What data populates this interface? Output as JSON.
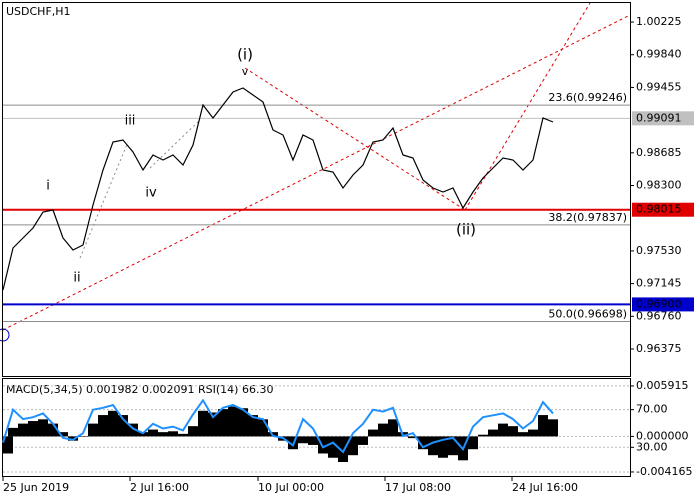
{
  "chart_data": [
    {
      "type": "line",
      "title": "USDCHF,H1",
      "x": [
        0,
        1,
        2,
        3,
        4,
        5,
        6,
        7,
        8,
        9,
        10,
        11,
        12,
        13,
        14,
        15,
        16,
        17,
        18,
        19,
        20,
        21,
        22,
        23,
        24,
        25,
        26,
        27,
        28,
        29,
        30,
        31,
        32,
        33,
        34,
        35,
        36,
        37,
        38,
        39,
        40,
        41,
        42,
        43,
        44,
        45,
        46,
        47,
        48,
        49,
        50,
        51,
        52,
        53,
        54,
        55
      ],
      "values": [
        0.9707,
        0.97564,
        0.97682,
        0.978,
        0.97988,
        0.98012,
        0.97682,
        0.97541,
        0.976,
        0.98071,
        0.98483,
        0.98812,
        0.98836,
        0.98695,
        0.98483,
        0.98659,
        0.986,
        0.98659,
        0.98541,
        0.98777,
        0.99248,
        0.99095,
        0.99248,
        0.99401,
        0.99448,
        0.99366,
        0.99283,
        0.98954,
        0.98895,
        0.986,
        0.98895,
        0.98836,
        0.98483,
        0.98459,
        0.98271,
        0.98424,
        0.98541,
        0.98812,
        0.98836,
        0.98977,
        0.98659,
        0.98624,
        0.98365,
        0.98271,
        0.98224,
        0.98271,
        0.98035,
        0.98224,
        0.98388,
        0.98506,
        0.98624,
        0.986,
        0.98483,
        0.986,
        0.99095,
        0.99048
      ],
      "color": "#000000",
      "xlim": [
        0,
        62.7
      ],
      "ylim": [
        0.96057,
        1.00449
      ],
      "yticks": [
        1.00225,
        {
          "value": 0.9984,
          "label": "0.99840"
        },
        0.99455,
        0.98685,
        {
          "value": 0.983,
          "label": "0.98300"
        },
        {
          "value": 0.9753,
          "label": "0.97530"
        },
        0.97145,
        {
          "value": 0.9676,
          "label": "0.96760"
        },
        0.96375
      ],
      "price_lines": [
        {
          "value": 0.99091,
          "color": "#c0c0c0"
        },
        {
          "value": 0.98015,
          "color": "#e00000"
        },
        {
          "value": 0.969,
          "label": "0.96900",
          "color": "#0000cc"
        }
      ],
      "levels": [
        {
          "value": 0.99246,
          "label": "23.6(0.99246)"
        },
        {
          "value": 0.97837,
          "label": "38.2(0.97837)"
        },
        {
          "value": 0.96698,
          "label": "50.0(0.96698)"
        }
      ],
      "level_color": "#8c8c8c",
      "annotations": [
        {
          "text": "i",
          "color": "#555555"
        },
        {
          "text": "ii",
          "color": "#555555"
        },
        {
          "text": "iii",
          "color": "#555555"
        },
        {
          "text": "iv",
          "color": "#555555"
        },
        {
          "text": "v",
          "color": "#555555"
        },
        {
          "text": "(i)",
          "color": "#e00000"
        },
        {
          "text": "(ii)",
          "color": "#e00000"
        }
      ]
    },
    {
      "type": "bar",
      "title": "MACD(5,34,5) 0.001982 0.002091 RSI(14) 66.30",
      "x": [
        0,
        1,
        2,
        3,
        4,
        5,
        6,
        7,
        8,
        9,
        10,
        11,
        12,
        13,
        14,
        15,
        16,
        17,
        18,
        19,
        20,
        21,
        22,
        23,
        24,
        25,
        26,
        27,
        28,
        29,
        30,
        31,
        32,
        33,
        34,
        35,
        36,
        37,
        38,
        39,
        40,
        41,
        42,
        43,
        44,
        45,
        46,
        47,
        48,
        49,
        50,
        51,
        52,
        53,
        54,
        55
      ],
      "xlim": [
        0,
        62.7
      ],
      "xticks": [
        {
          "value": 0,
          "label": "25 Jun 2019"
        },
        {
          "value": 12.7,
          "label": "2 Jul 16:00"
        },
        {
          "value": 25.5,
          "label": "10 Jul 00:00"
        },
        {
          "value": 38.2,
          "label": "17 Jul 08:00"
        },
        {
          "value": 50.9,
          "label": "24 Jul 16:00"
        }
      ],
      "ylim": [
        -0.004639,
        0.006727
      ],
      "yticks": [
        0.005915,
        {
          "value": 0,
          "label": "0.000000"
        },
        -0.004165
      ],
      "y2lim": [
        -0.5,
        102.6
      ],
      "y2ticks": [
        {
          "value": 70,
          "label": "70.00"
        },
        {
          "value": 30,
          "label": "30.00"
        }
      ],
      "series": [
        {
          "color": "#000000",
          "values": [
            -0.002,
            0.001,
            0.0015,
            0.0018,
            0.002,
            0.0015,
            0.0005,
            -0.0005,
            0.0,
            0.0015,
            0.0025,
            0.003,
            0.0025,
            0.0015,
            0.0005,
            0.0008,
            0.0005,
            0.0006,
            0.0003,
            0.0012,
            0.003,
            0.0028,
            0.0032,
            0.0035,
            0.0033,
            0.0025,
            0.002,
            0.0005,
            -0.0005,
            -0.0015,
            -0.0008,
            -0.001,
            -0.002,
            -0.0025,
            -0.003,
            -0.0022,
            -0.001,
            0.0008,
            0.0015,
            0.002,
            0.0005,
            -0.0002,
            -0.0015,
            -0.0022,
            -0.0025,
            -0.0022,
            -0.0028,
            -0.0015,
            0.0002,
            0.0008,
            0.0015,
            0.0012,
            0.0005,
            0.0008,
            0.0025,
            0.002
          ]
        },
        {
          "color": "#1e90ff",
          "axis": "y2",
          "values": [
            35,
            70,
            60,
            62,
            66,
            55,
            40,
            38,
            45,
            70,
            72,
            75,
            60,
            50,
            45,
            55,
            50,
            52,
            48,
            65,
            80,
            62,
            72,
            75,
            70,
            62,
            60,
            42,
            40,
            32,
            60,
            50,
            30,
            35,
            25,
            45,
            55,
            70,
            68,
            72,
            42,
            45,
            30,
            35,
            38,
            40,
            28,
            52,
            62,
            64,
            66,
            60,
            50,
            58,
            78,
            66
          ]
        }
      ]
    }
  ]
}
